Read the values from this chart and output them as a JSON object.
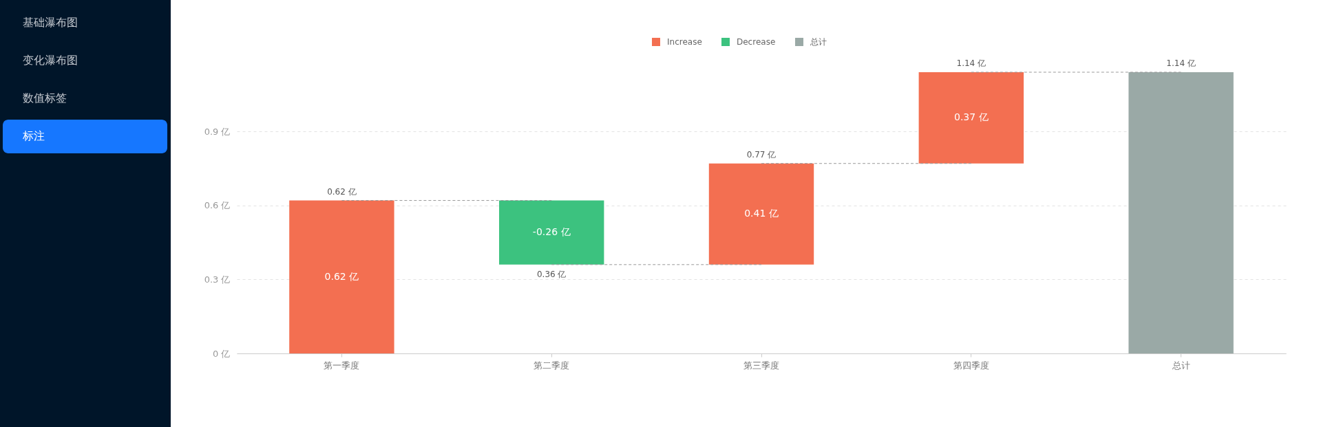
{
  "chart_data": [
    {
      "type": "other",
      "categories": [
        "基础瀑布图",
        "变化瀑布图",
        "数值标签",
        "标注"
      ],
      "colors": [
        null,
        null,
        null,
        "#1677ff"
      ]
    },
    {
      "type": "bar",
      "categories": [
        "第一季度",
        "第二季度",
        "第三季度",
        "第四季度",
        "总计"
      ],
      "series": [
        {
          "type": "line",
          "color": "#999999",
          "line_style": "dashed",
          "values": [
            0.62,
            0.62,
            null,
            null,
            null
          ],
          "value_labels": [
            "0.62 亿",
            null,
            null,
            null,
            null
          ]
        },
        {
          "type": "line",
          "color": "#999999",
          "line_style": "dashed",
          "values": [
            null,
            0.36,
            0.36,
            null,
            null
          ],
          "value_labels": [
            null,
            "0.36 亿",
            null,
            null,
            null
          ]
        },
        {
          "type": "line",
          "color": "#999999",
          "line_style": "dashed",
          "values": [
            null,
            null,
            0.77,
            0.77,
            null
          ],
          "value_labels": [
            null,
            null,
            "0.77 亿",
            null,
            null
          ]
        },
        {
          "type": "line",
          "color": "#999999",
          "line_style": "dashed",
          "values": [
            null,
            null,
            null,
            1.14,
            1.14
          ],
          "value_labels": [
            null,
            null,
            null,
            "1.14 亿",
            "1.14 亿"
          ]
        },
        {
          "name": "Increase",
          "color": "#f36f51",
          "values": [
            0.62,
            null,
            0.41,
            0.37,
            null
          ],
          "base": [
            0,
            null,
            0.36,
            0.77,
            null
          ],
          "value_labels": [
            "0.62 亿",
            null,
            "0.41 亿",
            "0.37 亿",
            null
          ]
        },
        {
          "name": "Decrease",
          "color": "#3cc27f",
          "values": [
            null,
            -0.26,
            null,
            null,
            null
          ],
          "base": [
            null,
            0.62,
            null,
            null,
            null
          ],
          "value_labels": [
            null,
            "-0.26 亿",
            null,
            null,
            null
          ]
        },
        {
          "name": "总计",
          "color": "#9aa9a6",
          "values": [
            null,
            null,
            null,
            null,
            1.14
          ],
          "base": [
            null,
            null,
            null,
            null,
            0
          ]
        }
      ],
      "ylim": [
        0,
        1.14
      ],
      "yticks": [
        {
          "value": 0,
          "label": "0 亿"
        },
        {
          "value": 0.3,
          "label": "0.3 亿"
        },
        {
          "value": 0.6,
          "label": "0.6 亿"
        },
        {
          "value": 0.9,
          "label": "0.9 亿"
        }
      ],
      "grid": "y",
      "legend": "top"
    }
  ]
}
